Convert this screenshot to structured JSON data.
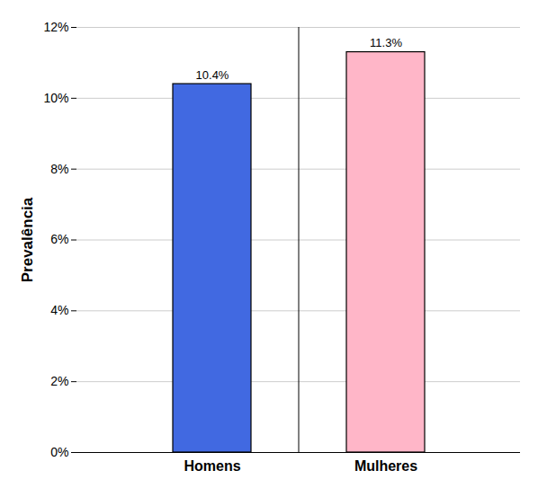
{
  "chart_data": {
    "type": "bar",
    "categories": [
      "Homens",
      "Mulheres"
    ],
    "values": [
      10.4,
      11.3
    ],
    "value_labels": [
      "10.4%",
      "11.3%"
    ],
    "colors": [
      "#4169E1",
      "#FFB6C8"
    ],
    "ylabel": "Prevalência",
    "ylim": [
      0,
      12
    ],
    "yticks": [
      {
        "value": 0,
        "label": "0%"
      },
      {
        "value": 2,
        "label": "2%"
      },
      {
        "value": 4,
        "label": "4%"
      },
      {
        "value": 6,
        "label": "6%"
      },
      {
        "value": 8,
        "label": "8%"
      },
      {
        "value": 10,
        "label": "10%"
      },
      {
        "value": 12,
        "label": "12%"
      }
    ],
    "grid": true,
    "data_labels": true
  }
}
